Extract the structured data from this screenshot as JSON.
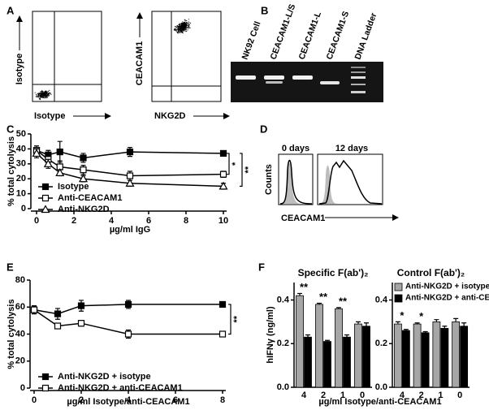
{
  "panel_labels": [
    "A",
    "B",
    "C",
    "D",
    "E",
    "F"
  ],
  "panel_a": {
    "plots": [
      {
        "x_label": "Isotype",
        "y_label": "Isotype"
      },
      {
        "x_label": "NKG2D",
        "y_label": "CEACAM1"
      }
    ]
  },
  "panel_b": {
    "lanes": [
      "NK92 Cell",
      "CEACAM1-L/S",
      "CEACAM1-L",
      "CEACAM1-S",
      "DNA Ladder"
    ]
  },
  "panel_d": {
    "titles": [
      "0 days",
      "12 days"
    ],
    "y_label": "Counts",
    "x_label": "CEACAM1"
  },
  "chart_data": [
    {
      "type": "line",
      "x_label": "µg/ml IgG",
      "y_label": "% total cytolysis",
      "x": [
        0,
        0.625,
        1.25,
        2.5,
        5,
        10
      ],
      "xlim": [
        0,
        10
      ],
      "xticks": [
        0,
        2,
        4,
        6,
        8,
        10
      ],
      "ylim": [
        0,
        50
      ],
      "yticks": [
        0,
        10,
        20,
        30,
        40,
        50
      ],
      "series": [
        {
          "name": "Isotype",
          "color": "#000000",
          "marker": "square",
          "filled": true,
          "values": [
            39,
            36,
            38,
            34,
            38,
            37
          ],
          "errors": [
            2,
            3,
            7,
            3,
            3,
            1.5
          ]
        },
        {
          "name": "Anti-CEACAM1",
          "color": "#000000",
          "marker": "square",
          "filled": false,
          "values": [
            39,
            33,
            28,
            26,
            22,
            23
          ],
          "errors": [
            3,
            3,
            4,
            3,
            3,
            2
          ]
        },
        {
          "name": "Anti-NKG2D",
          "color": "#000000",
          "marker": "triangle",
          "filled": false,
          "values": [
            37,
            30,
            24,
            20,
            17,
            15
          ],
          "errors": [
            3,
            3,
            2,
            2,
            2,
            2
          ]
        }
      ],
      "significance": [
        "*",
        "**"
      ]
    },
    {
      "type": "line",
      "x_label": "µg/ml Isotype/anti-CEACAM1",
      "y_label": "% total cytolysis",
      "x": [
        0,
        1,
        2,
        4,
        8
      ],
      "xlim": [
        0,
        8
      ],
      "xticks": [
        0,
        2,
        4,
        6,
        8
      ],
      "ylim": [
        0,
        80
      ],
      "yticks": [
        0,
        20,
        40,
        60,
        80
      ],
      "series": [
        {
          "name": "Anti-NKG2D + isotype",
          "color": "#000000",
          "marker": "square",
          "filled": true,
          "values": [
            58,
            55,
            61,
            62,
            62
          ],
          "errors": [
            3,
            4,
            4,
            3,
            2
          ]
        },
        {
          "name": "Anti-NKG2D + anti-CEACAM1",
          "color": "#000000",
          "marker": "square",
          "filled": false,
          "values": [
            58,
            46,
            48,
            40,
            40
          ],
          "errors": [
            3,
            2,
            2,
            3,
            2
          ]
        }
      ],
      "significance": [
        "**"
      ]
    },
    {
      "type": "bar",
      "title": "Specific F(ab')₂",
      "y_label": "hIFNγ (ng/ml)",
      "x_label": "µg/ml Isotype/anti-CEACAM1",
      "categories": [
        "4",
        "2",
        "1",
        "0"
      ],
      "ylim": [
        0,
        0.48
      ],
      "yticks": [
        {
          "value": 0,
          "label": "0.0"
        },
        {
          "value": 0.2,
          "label": "0.2"
        },
        {
          "value": 0.4,
          "label": "0.4"
        }
      ],
      "series": [
        {
          "color": "#a6a6a6",
          "values": [
            0.42,
            0.38,
            0.36,
            0.29
          ],
          "errors": [
            0.01,
            0.005,
            0.005,
            0.01
          ]
        },
        {
          "color": "#000000",
          "values": [
            0.23,
            0.21,
            0.23,
            0.28
          ],
          "errors": [
            0.01,
            0.005,
            0.01,
            0.015
          ]
        }
      ],
      "significance": [
        "**",
        "**",
        "**",
        null
      ]
    },
    {
      "type": "bar",
      "title": "Control F(ab')₂",
      "categories": [
        "4",
        "2",
        "1",
        "0"
      ],
      "ylim": [
        0,
        0.48
      ],
      "yticks": [
        {
          "value": 0,
          "label": "0.0"
        },
        {
          "value": 0.2,
          "label": "0.2"
        },
        {
          "value": 0.4,
          "label": "0.4"
        }
      ],
      "series": [
        {
          "name": "Anti-NKG2D + isotype",
          "color": "#a6a6a6",
          "values": [
            0.29,
            0.29,
            0.3,
            0.3
          ],
          "errors": [
            0.01,
            0.005,
            0.01,
            0.015
          ]
        },
        {
          "name": "Anti-NKG2D + anti-CEACAM1",
          "color": "#000000",
          "values": [
            0.26,
            0.25,
            0.27,
            0.28
          ],
          "errors": [
            0.005,
            0.005,
            0.01,
            0.015
          ]
        }
      ],
      "significance": [
        "*",
        "*",
        null,
        null
      ]
    }
  ]
}
